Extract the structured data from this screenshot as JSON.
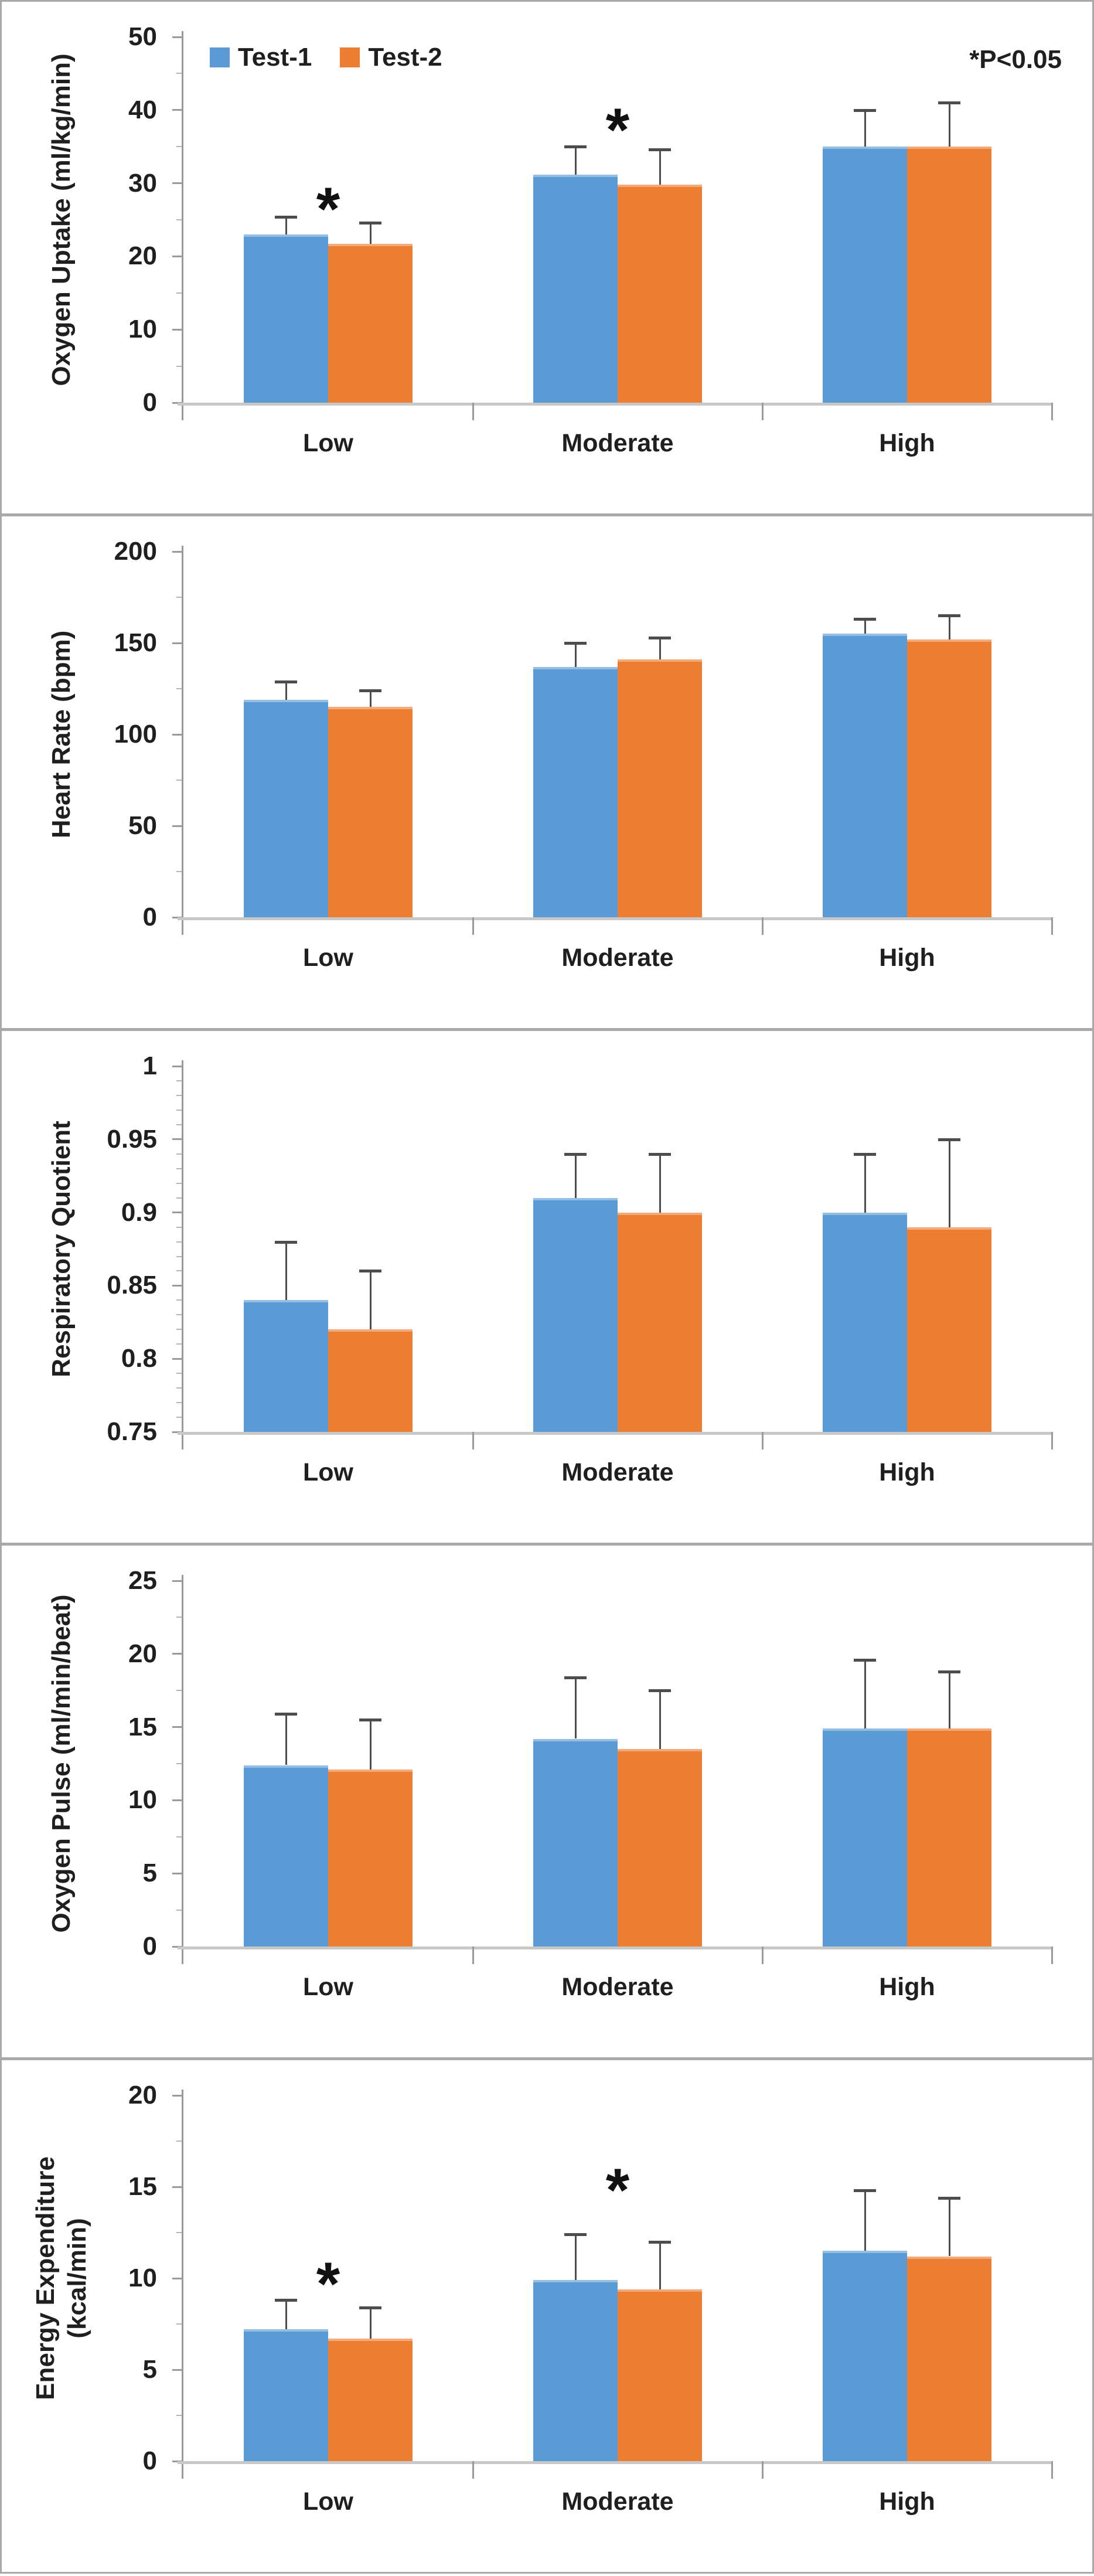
{
  "figure": {
    "description": "Five stacked grouped bar charts comparing Test-1 and Test-2 across exercise intensities"
  },
  "annotation": {
    "text": "*P<0.05"
  },
  "legend": {
    "items": [
      {
        "label": "Test-1",
        "color": "#5B9BD5"
      },
      {
        "label": "Test-2",
        "color": "#ED7D31"
      }
    ]
  },
  "colors": {
    "test1": "#5B9BD5",
    "test2": "#ED7D31",
    "error_bar": "#4d4d4d",
    "axis": "#9a9a9a",
    "minor_tick": "#b5b5b5",
    "baseline": "#c8c8c8",
    "text": "#1f1f1f",
    "panel_border": "#a9a9a9"
  },
  "categories": [
    "Low",
    "Moderate",
    "High"
  ],
  "chart_data": [
    {
      "type": "bar",
      "ylabel_lines": [
        "Oxygen Uptake (ml/kg/min)"
      ],
      "ylim": [
        0,
        50
      ],
      "ytick_step": 10,
      "yminor_step": 5,
      "ytick_labels": [
        "0",
        "10",
        "20",
        "30",
        "40",
        "50"
      ],
      "categories": [
        "Low",
        "Moderate",
        "High"
      ],
      "grid": false,
      "legend_position": "top-left",
      "series": [
        {
          "name": "Test-1",
          "color": "#5B9BD5",
          "values": [
            23.0,
            31.2,
            35.0
          ],
          "errors": [
            2.4,
            3.8,
            5.0
          ]
        },
        {
          "name": "Test-2",
          "color": "#ED7D31",
          "values": [
            21.7,
            29.8,
            35.0
          ],
          "errors": [
            2.9,
            4.8,
            6.0
          ]
        }
      ],
      "sig_markers": [
        {
          "category": "Low",
          "y": 28.2
        },
        {
          "category": "Moderate",
          "y": 39.0
        }
      ],
      "show_legend": true,
      "show_annotation": true
    },
    {
      "type": "bar",
      "ylabel_lines": [
        "Heart Rate (bpm)"
      ],
      "ylim": [
        0,
        200
      ],
      "ytick_step": 50,
      "yminor_step": 25,
      "ytick_labels": [
        "0",
        "50",
        "100",
        "150",
        "200"
      ],
      "categories": [
        "Low",
        "Moderate",
        "High"
      ],
      "grid": false,
      "series": [
        {
          "name": "Test-1",
          "color": "#5B9BD5",
          "values": [
            119,
            137,
            155
          ],
          "errors": [
            10,
            13,
            8
          ]
        },
        {
          "name": "Test-2",
          "color": "#ED7D31",
          "values": [
            115,
            141,
            152
          ],
          "errors": [
            9,
            12,
            13
          ]
        }
      ],
      "sig_markers": [],
      "show_legend": false,
      "show_annotation": false
    },
    {
      "type": "bar",
      "ylabel_lines": [
        "Respiratory Quotient"
      ],
      "ylim": [
        0.75,
        1
      ],
      "ytick_step": 0.05,
      "yminor_step": 0.01,
      "ytick_labels": [
        "0.75",
        "0.8",
        "0.85",
        "0.9",
        "0.95",
        "1"
      ],
      "categories": [
        "Low",
        "Moderate",
        "High"
      ],
      "grid": false,
      "series": [
        {
          "name": "Test-1",
          "color": "#5B9BD5",
          "values": [
            0.84,
            0.91,
            0.9
          ],
          "errors": [
            0.04,
            0.03,
            0.04
          ]
        },
        {
          "name": "Test-2",
          "color": "#ED7D31",
          "values": [
            0.82,
            0.9,
            0.89
          ],
          "errors": [
            0.04,
            0.04,
            0.06
          ]
        }
      ],
      "sig_markers": [],
      "show_legend": false,
      "show_annotation": false
    },
    {
      "type": "bar",
      "ylabel_lines": [
        "Oxygen Pulse (ml/min/beat)"
      ],
      "ylim": [
        0,
        25
      ],
      "ytick_step": 5,
      "yminor_step": 2.5,
      "ytick_labels": [
        "0",
        "5",
        "10",
        "15",
        "20",
        "25"
      ],
      "categories": [
        "Low",
        "Moderate",
        "High"
      ],
      "grid": false,
      "series": [
        {
          "name": "Test-1",
          "color": "#5B9BD5",
          "values": [
            12.4,
            14.2,
            14.9
          ],
          "errors": [
            3.5,
            4.2,
            4.7
          ]
        },
        {
          "name": "Test-2",
          "color": "#ED7D31",
          "values": [
            12.1,
            13.5,
            14.9
          ],
          "errors": [
            3.4,
            4.0,
            3.9
          ]
        }
      ],
      "sig_markers": [],
      "show_legend": false,
      "show_annotation": false
    },
    {
      "type": "bar",
      "ylabel_lines": [
        "Energy Expenditure",
        "(kcal/min)"
      ],
      "ylim": [
        0,
        20
      ],
      "ytick_step": 5,
      "yminor_step": 2.5,
      "ytick_labels": [
        "0",
        "5",
        "10",
        "15",
        "20"
      ],
      "categories": [
        "Low",
        "Moderate",
        "High"
      ],
      "grid": false,
      "series": [
        {
          "name": "Test-1",
          "color": "#5B9BD5",
          "values": [
            7.2,
            9.9,
            11.5
          ],
          "errors": [
            1.6,
            2.5,
            3.3
          ]
        },
        {
          "name": "Test-2",
          "color": "#ED7D31",
          "values": [
            6.7,
            9.4,
            11.2
          ],
          "errors": [
            1.7,
            2.6,
            3.2
          ]
        }
      ],
      "sig_markers": [
        {
          "category": "Low",
          "y": 10.4
        },
        {
          "category": "Moderate",
          "y": 15.5
        }
      ],
      "show_legend": false,
      "show_annotation": false
    }
  ]
}
